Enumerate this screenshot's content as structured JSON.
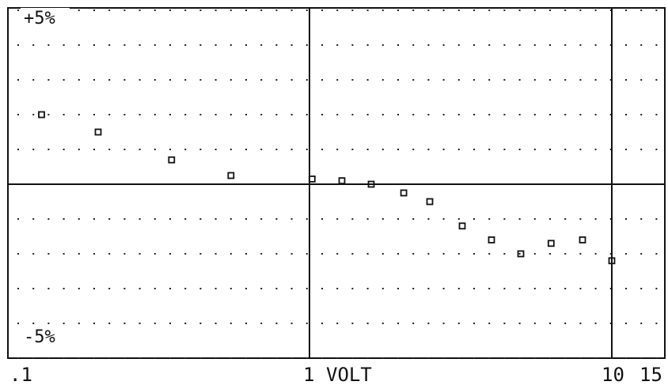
{
  "chart_data": {
    "type": "scatter",
    "title": "",
    "xlabel": "VOLT",
    "ylabel": "",
    "x_scale": "log",
    "xlim": [
      0.1,
      15
    ],
    "ylim": [
      -5,
      5
    ],
    "x_tick_labels": [
      {
        "value": 0.1,
        "label": ".1"
      },
      {
        "value": 1,
        "label": "1"
      },
      {
        "value": 10,
        "label": "10"
      },
      {
        "value": 15,
        "label": "15"
      }
    ],
    "y_tick_labels": [
      {
        "value": 5,
        "label": "+5%"
      },
      {
        "value": -5,
        "label": "-5%"
      }
    ],
    "grid": "dotted",
    "series": [
      {
        "marker": "square",
        "x": [
          0.13,
          0.2,
          0.35,
          0.55,
          1.02,
          1.28,
          1.6,
          2.05,
          2.5,
          3.2,
          4.0,
          5.0,
          6.3,
          8.0,
          10.0
        ],
        "y": [
          2.0,
          1.5,
          0.7,
          0.25,
          0.15,
          0.1,
          0.0,
          -0.25,
          -0.5,
          -1.2,
          -1.6,
          -2.0,
          -1.7,
          -1.6,
          -2.2
        ]
      }
    ],
    "colors": {
      "ink": "#111111",
      "background": "#ffffff"
    }
  }
}
